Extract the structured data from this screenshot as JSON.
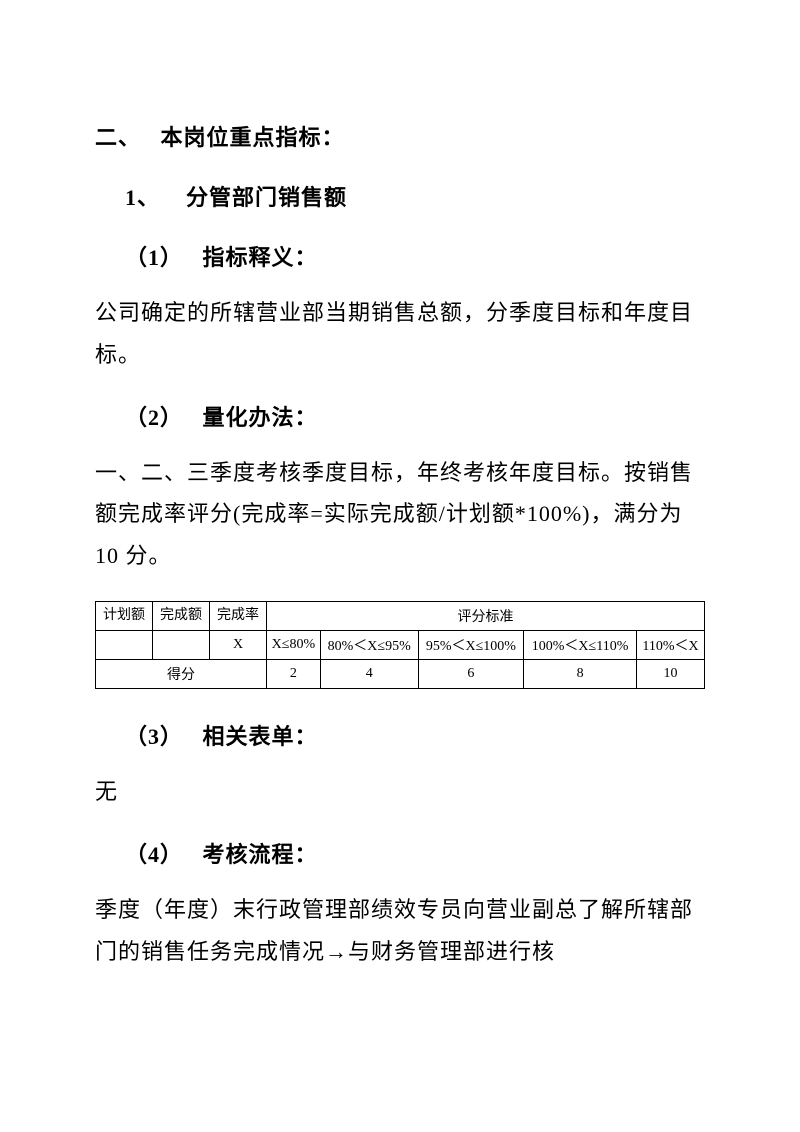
{
  "section_number": "二、",
  "section_title": "本岗位重点指标：",
  "item1_number": "1、",
  "item1_title": "分管部门销售额",
  "sub1_number": "（1）",
  "sub1_title": "指标释义：",
  "sub1_body": "公司确定的所辖营业部当期销售总额，分季度目标和年度目标。",
  "sub2_number": "（2）",
  "sub2_title": "量化办法：",
  "sub2_body": "一、二、三季度考核季度目标，年终考核年度目标。按销售额完成率评分(完成率=实际完成额/计划额*100%)，满分为 10 分。",
  "table": {
    "col_plan": "计划额",
    "col_complete": "完成额",
    "col_rate": "完成率",
    "col_standard": "评分标准",
    "rate_symbol": "X",
    "ranges": [
      "X≤80%",
      "80%＜X≤95%",
      "95%＜X≤100%",
      "100%＜X≤110%",
      "110%＜X"
    ],
    "score_label": "得分",
    "scores": [
      "2",
      "4",
      "6",
      "8",
      "10"
    ],
    "border_color": "#000000",
    "font_size": 14
  },
  "sub3_number": "（3）",
  "sub3_title": "相关表单：",
  "sub3_body": "无",
  "sub4_number": "（4）",
  "sub4_title": "考核流程：",
  "sub4_body": "季度（年度）末行政管理部绩效专员向营业副总了解所辖部门的销售任务完成情况→与财务管理部进行核"
}
